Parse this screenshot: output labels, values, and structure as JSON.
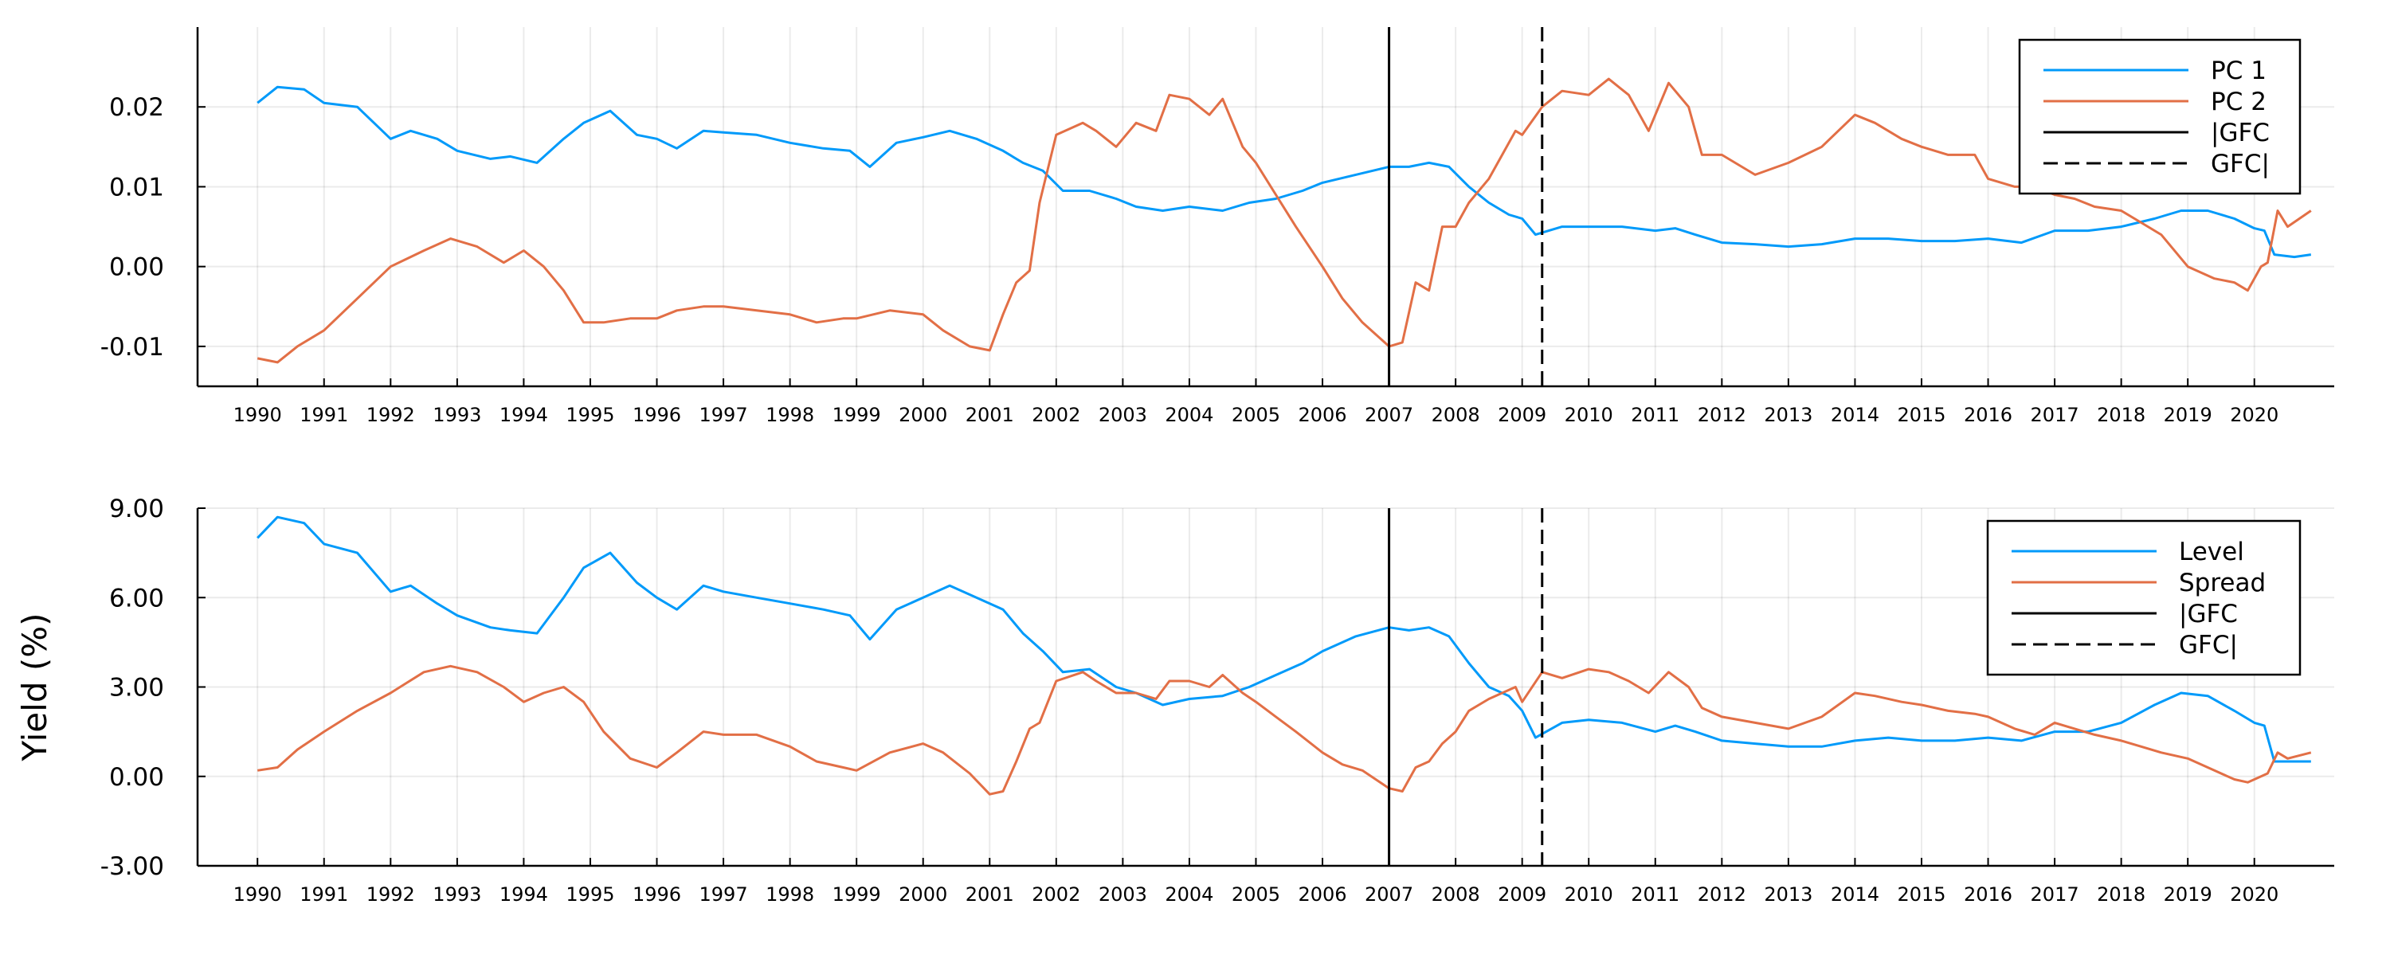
{
  "chart_data": [
    {
      "type": "line",
      "title": "",
      "xlabel": "",
      "ylabel": "",
      "xlim": [
        1989.1,
        2021.2
      ],
      "ylim": [
        -0.015,
        0.03
      ],
      "yticks": [
        -0.01,
        0.0,
        0.01,
        0.02
      ],
      "ytick_labels": [
        "-0.01",
        "0.00",
        "0.01",
        "0.02"
      ],
      "xticks": [
        1990,
        1991,
        1992,
        1993,
        1994,
        1995,
        1996,
        1997,
        1998,
        1999,
        2000,
        2001,
        2002,
        2003,
        2004,
        2005,
        2006,
        2007,
        2008,
        2009,
        2010,
        2011,
        2012,
        2013,
        2014,
        2015,
        2016,
        2017,
        2018,
        2019,
        2020
      ],
      "xtick_labels": [
        "1990",
        "1991",
        "1992",
        "1993",
        "1994",
        "1995",
        "1996",
        "1997",
        "1998",
        "1999",
        "2000",
        "2001",
        "2002",
        "2003",
        "2004",
        "2005",
        "2006",
        "2007",
        "2008",
        "2009",
        "2010",
        "2011",
        "2012",
        "2013",
        "2014",
        "2015",
        "2016",
        "2017",
        "2018",
        "2019",
        "2020"
      ],
      "grid": true,
      "legend_position": "top-right",
      "series": [
        {
          "name": "PC 1",
          "color": "#009AFA",
          "x": [
            1990.0,
            1990.3,
            1990.7,
            1991.0,
            1991.5,
            1992.0,
            1992.3,
            1992.7,
            1993.0,
            1993.5,
            1993.8,
            1994.2,
            1994.6,
            1994.9,
            1995.3,
            1995.7,
            1996.0,
            1996.3,
            1996.7,
            1997.0,
            1997.5,
            1998.0,
            1998.5,
            1998.9,
            1999.2,
            1999.6,
            2000.0,
            2000.4,
            2000.8,
            2001.2,
            2001.5,
            2001.8,
            2002.1,
            2002.5,
            2002.9,
            2003.2,
            2003.6,
            2004.0,
            2004.5,
            2004.9,
            2005.3,
            2005.7,
            2006.0,
            2006.5,
            2007.0,
            2007.3,
            2007.6,
            2007.9,
            2008.2,
            2008.5,
            2008.8,
            2009.0,
            2009.2,
            2009.6,
            2010.0,
            2010.5,
            2011.0,
            2011.3,
            2011.6,
            2012.0,
            2012.5,
            2013.0,
            2013.5,
            2014.0,
            2014.5,
            2015.0,
            2015.5,
            2016.0,
            2016.5,
            2017.0,
            2017.5,
            2018.0,
            2018.5,
            2018.9,
            2019.3,
            2019.7,
            2020.0,
            2020.15,
            2020.3,
            2020.6,
            2020.85
          ],
          "y": [
            0.0205,
            0.0225,
            0.0222,
            0.0205,
            0.02,
            0.016,
            0.017,
            0.016,
            0.0145,
            0.0135,
            0.0138,
            0.013,
            0.016,
            0.018,
            0.0195,
            0.0165,
            0.016,
            0.0148,
            0.017,
            0.0168,
            0.0165,
            0.0155,
            0.0148,
            0.0145,
            0.0125,
            0.0155,
            0.0162,
            0.017,
            0.016,
            0.0145,
            0.013,
            0.012,
            0.0095,
            0.0095,
            0.0085,
            0.0075,
            0.007,
            0.0075,
            0.007,
            0.008,
            0.0085,
            0.0095,
            0.0105,
            0.0115,
            0.0125,
            0.0125,
            0.013,
            0.0125,
            0.01,
            0.008,
            0.0065,
            0.006,
            0.004,
            0.005,
            0.005,
            0.005,
            0.0045,
            0.0048,
            0.004,
            0.003,
            0.0028,
            0.0025,
            0.0028,
            0.0035,
            0.0035,
            0.0032,
            0.0032,
            0.0035,
            0.003,
            0.0045,
            0.0045,
            0.005,
            0.006,
            0.007,
            0.007,
            0.006,
            0.0048,
            0.0045,
            0.0015,
            0.0012,
            0.0015
          ]
        },
        {
          "name": "PC 2",
          "color": "#E26F46",
          "x": [
            1990.0,
            1990.3,
            1990.6,
            1991.0,
            1991.5,
            1992.0,
            1992.5,
            1992.9,
            1993.3,
            1993.7,
            1994.0,
            1994.3,
            1994.6,
            1994.9,
            1995.2,
            1995.6,
            1996.0,
            1996.3,
            1996.7,
            1997.0,
            1997.5,
            1998.0,
            1998.4,
            1998.8,
            1999.0,
            1999.5,
            2000.0,
            2000.3,
            2000.7,
            2001.0,
            2001.2,
            2001.4,
            2001.6,
            2001.75,
            2002.0,
            2002.4,
            2002.6,
            2002.9,
            2003.2,
            2003.5,
            2003.7,
            2004.0,
            2004.3,
            2004.5,
            2004.8,
            2005.0,
            2005.3,
            2005.6,
            2006.0,
            2006.3,
            2006.6,
            2007.0,
            2007.2,
            2007.4,
            2007.6,
            2007.8,
            2008.0,
            2008.2,
            2008.5,
            2008.7,
            2008.9,
            2009.0,
            2009.3,
            2009.6,
            2010.0,
            2010.3,
            2010.6,
            2010.9,
            2011.2,
            2011.5,
            2011.7,
            2012.0,
            2012.5,
            2013.0,
            2013.5,
            2014.0,
            2014.3,
            2014.7,
            2015.0,
            2015.4,
            2015.8,
            2016.0,
            2016.4,
            2016.7,
            2017.0,
            2017.3,
            2017.6,
            2018.0,
            2018.3,
            2018.6,
            2019.0,
            2019.4,
            2019.7,
            2019.9,
            2020.1,
            2020.2,
            2020.35,
            2020.5,
            2020.85
          ],
          "y": [
            -0.0115,
            -0.012,
            -0.01,
            -0.008,
            -0.004,
            0.0,
            0.002,
            0.0035,
            0.0025,
            0.0005,
            0.002,
            0.0,
            -0.003,
            -0.007,
            -0.007,
            -0.0065,
            -0.0065,
            -0.0055,
            -0.005,
            -0.005,
            -0.0055,
            -0.006,
            -0.007,
            -0.0065,
            -0.0065,
            -0.0055,
            -0.006,
            -0.008,
            -0.01,
            -0.0105,
            -0.006,
            -0.002,
            -0.0005,
            0.008,
            0.0165,
            0.018,
            0.017,
            0.015,
            0.018,
            0.017,
            0.0215,
            0.021,
            0.019,
            0.021,
            0.015,
            0.013,
            0.009,
            0.005,
            0.0,
            -0.004,
            -0.007,
            -0.01,
            -0.0095,
            -0.002,
            -0.003,
            0.005,
            0.005,
            0.008,
            0.011,
            0.014,
            0.017,
            0.0165,
            0.02,
            0.022,
            0.0215,
            0.0235,
            0.0215,
            0.017,
            0.023,
            0.02,
            0.014,
            0.014,
            0.0115,
            0.013,
            0.015,
            0.019,
            0.018,
            0.016,
            0.015,
            0.014,
            0.014,
            0.011,
            0.01,
            0.01,
            0.009,
            0.0085,
            0.0075,
            0.007,
            0.0055,
            0.004,
            0.0,
            -0.0015,
            -0.002,
            -0.003,
            0.0,
            0.0005,
            0.007,
            0.005,
            0.007
          ]
        }
      ],
      "vlines": [
        {
          "name": "|GFC",
          "x": 2007.0,
          "color": "#000000",
          "style": "solid"
        },
        {
          "name": "GFC|",
          "x": 2009.3,
          "color": "#000000",
          "style": "dashed"
        }
      ]
    },
    {
      "type": "line",
      "title": "",
      "xlabel": "",
      "ylabel": "Yield (%)",
      "xlim": [
        1989.1,
        2021.2
      ],
      "ylim": [
        -3.0,
        9.0
      ],
      "yticks": [
        -3.0,
        0.0,
        3.0,
        6.0,
        9.0
      ],
      "ytick_labels": [
        "-3.00",
        "0.00",
        "3.00",
        "6.00",
        "9.00"
      ],
      "xticks": [
        1990,
        1991,
        1992,
        1993,
        1994,
        1995,
        1996,
        1997,
        1998,
        1999,
        2000,
        2001,
        2002,
        2003,
        2004,
        2005,
        2006,
        2007,
        2008,
        2009,
        2010,
        2011,
        2012,
        2013,
        2014,
        2015,
        2016,
        2017,
        2018,
        2019,
        2020
      ],
      "xtick_labels": [
        "1990",
        "1991",
        "1992",
        "1993",
        "1994",
        "1995",
        "1996",
        "1997",
        "1998",
        "1999",
        "2000",
        "2001",
        "2002",
        "2003",
        "2004",
        "2005",
        "2006",
        "2007",
        "2008",
        "2009",
        "2010",
        "2011",
        "2012",
        "2013",
        "2014",
        "2015",
        "2016",
        "2017",
        "2018",
        "2019",
        "2020"
      ],
      "grid": true,
      "legend_position": "top-right",
      "series": [
        {
          "name": "Level",
          "color": "#009AFA",
          "x": [
            1990.0,
            1990.3,
            1990.7,
            1991.0,
            1991.5,
            1992.0,
            1992.3,
            1992.7,
            1993.0,
            1993.5,
            1993.8,
            1994.2,
            1994.6,
            1994.9,
            1995.3,
            1995.7,
            1996.0,
            1996.3,
            1996.7,
            1997.0,
            1997.5,
            1998.0,
            1998.5,
            1998.9,
            1999.2,
            1999.6,
            2000.0,
            2000.4,
            2000.8,
            2001.2,
            2001.5,
            2001.8,
            2002.1,
            2002.5,
            2002.9,
            2003.2,
            2003.6,
            2004.0,
            2004.5,
            2004.9,
            2005.3,
            2005.7,
            2006.0,
            2006.5,
            2007.0,
            2007.3,
            2007.6,
            2007.9,
            2008.2,
            2008.5,
            2008.8,
            2009.0,
            2009.2,
            2009.6,
            2010.0,
            2010.5,
            2011.0,
            2011.3,
            2011.6,
            2012.0,
            2012.5,
            2013.0,
            2013.5,
            2014.0,
            2014.5,
            2015.0,
            2015.5,
            2016.0,
            2016.5,
            2017.0,
            2017.5,
            2018.0,
            2018.5,
            2018.9,
            2019.3,
            2019.7,
            2020.0,
            2020.15,
            2020.3,
            2020.6,
            2020.85
          ],
          "y": [
            8.0,
            8.7,
            8.5,
            7.8,
            7.5,
            6.2,
            6.4,
            5.8,
            5.4,
            5.0,
            4.9,
            4.8,
            6.0,
            7.0,
            7.5,
            6.5,
            6.0,
            5.6,
            6.4,
            6.2,
            6.0,
            5.8,
            5.6,
            5.4,
            4.6,
            5.6,
            6.0,
            6.4,
            6.0,
            5.6,
            4.8,
            4.2,
            3.5,
            3.6,
            3.0,
            2.8,
            2.4,
            2.6,
            2.7,
            3.0,
            3.4,
            3.8,
            4.2,
            4.7,
            5.0,
            4.9,
            5.0,
            4.7,
            3.8,
            3.0,
            2.7,
            2.2,
            1.3,
            1.8,
            1.9,
            1.8,
            1.5,
            1.7,
            1.5,
            1.2,
            1.1,
            1.0,
            1.0,
            1.2,
            1.3,
            1.2,
            1.2,
            1.3,
            1.2,
            1.5,
            1.5,
            1.8,
            2.4,
            2.8,
            2.7,
            2.2,
            1.8,
            1.7,
            0.5,
            0.5,
            0.5
          ]
        },
        {
          "name": "Spread",
          "color": "#E26F46",
          "x": [
            1990.0,
            1990.3,
            1990.6,
            1991.0,
            1991.5,
            1992.0,
            1992.5,
            1992.9,
            1993.3,
            1993.7,
            1994.0,
            1994.3,
            1994.6,
            1994.9,
            1995.2,
            1995.6,
            1996.0,
            1996.3,
            1996.7,
            1997.0,
            1997.5,
            1998.0,
            1998.4,
            1998.8,
            1999.0,
            1999.5,
            2000.0,
            2000.3,
            2000.7,
            2001.0,
            2001.2,
            2001.4,
            2001.6,
            2001.75,
            2002.0,
            2002.4,
            2002.6,
            2002.9,
            2003.2,
            2003.5,
            2003.7,
            2004.0,
            2004.3,
            2004.5,
            2004.8,
            2005.0,
            2005.3,
            2005.6,
            2006.0,
            2006.3,
            2006.6,
            2007.0,
            2007.2,
            2007.4,
            2007.6,
            2007.8,
            2008.0,
            2008.2,
            2008.5,
            2008.7,
            2008.9,
            2009.0,
            2009.3,
            2009.6,
            2010.0,
            2010.3,
            2010.6,
            2010.9,
            2011.2,
            2011.5,
            2011.7,
            2012.0,
            2012.5,
            2013.0,
            2013.5,
            2014.0,
            2014.3,
            2014.7,
            2015.0,
            2015.4,
            2015.8,
            2016.0,
            2016.4,
            2016.7,
            2017.0,
            2017.3,
            2017.6,
            2018.0,
            2018.3,
            2018.6,
            2019.0,
            2019.4,
            2019.7,
            2019.9,
            2020.1,
            2020.2,
            2020.35,
            2020.5,
            2020.85
          ],
          "y": [
            0.2,
            0.3,
            0.9,
            1.5,
            2.2,
            2.8,
            3.5,
            3.7,
            3.5,
            3.0,
            2.5,
            2.8,
            3.0,
            2.5,
            1.5,
            0.6,
            0.3,
            0.8,
            1.5,
            1.4,
            1.4,
            1.0,
            0.5,
            0.3,
            0.2,
            0.8,
            1.1,
            0.8,
            0.1,
            -0.6,
            -0.5,
            0.5,
            1.6,
            1.8,
            3.2,
            3.5,
            3.2,
            2.8,
            2.8,
            2.6,
            3.2,
            3.2,
            3.0,
            3.4,
            2.8,
            2.5,
            2.0,
            1.5,
            0.8,
            0.4,
            0.2,
            -0.4,
            -0.5,
            0.3,
            0.5,
            1.1,
            1.5,
            2.2,
            2.6,
            2.8,
            3.0,
            2.5,
            3.5,
            3.3,
            3.6,
            3.5,
            3.2,
            2.8,
            3.5,
            3.0,
            2.3,
            2.0,
            1.8,
            1.6,
            2.0,
            2.8,
            2.7,
            2.5,
            2.4,
            2.2,
            2.1,
            2.0,
            1.6,
            1.4,
            1.8,
            1.6,
            1.4,
            1.2,
            1.0,
            0.8,
            0.6,
            0.2,
            -0.1,
            -0.2,
            0.0,
            0.1,
            0.8,
            0.6,
            0.8
          ]
        }
      ],
      "vlines": [
        {
          "name": "|GFC",
          "x": 2007.0,
          "color": "#000000",
          "style": "solid"
        },
        {
          "name": "GFC|",
          "x": 2009.3,
          "color": "#000000",
          "style": "dashed"
        }
      ]
    }
  ]
}
